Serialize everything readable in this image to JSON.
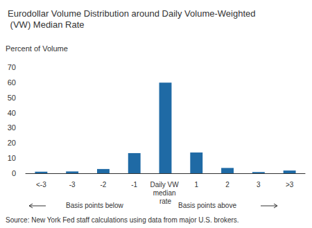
{
  "chart_data": {
    "type": "bar",
    "title": "Eurodollar Volume Distribution around Daily Volume-Weighted (VW) Median Rate",
    "y_label": "Percent of Volume",
    "categories": [
      "<-3",
      "-3",
      "-2",
      "-1",
      "Daily VW median rate",
      "1",
      "2",
      "3",
      ">3"
    ],
    "values": [
      1.0,
      1.2,
      2.8,
      13.3,
      59.8,
      13.7,
      3.5,
      0.8,
      1.8
    ],
    "color": "#1f6aa5",
    "ylim": [
      0,
      70
    ],
    "yticks": [
      0,
      10,
      20,
      30,
      40,
      50,
      60,
      70
    ],
    "grid": false,
    "annotations": [
      "Basis points below",
      "Basis points above"
    ],
    "source": "Source: New York Fed staff calculations using data from major U.S. brokers."
  }
}
